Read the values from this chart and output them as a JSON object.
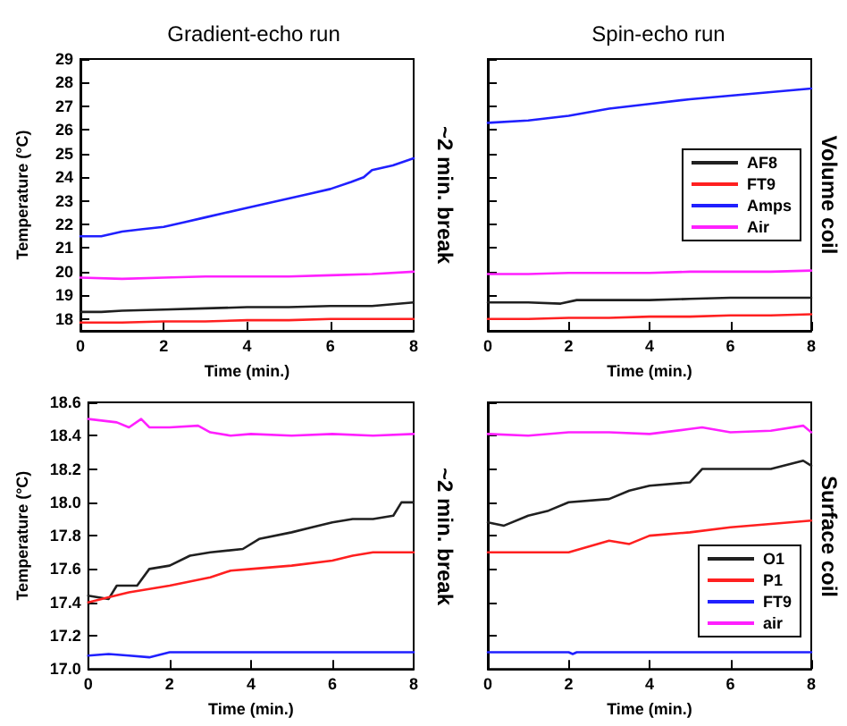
{
  "chart_data": [
    {
      "type": "line",
      "title": "Gradient-echo run",
      "xlabel": "Time (min.)",
      "ylabel": "Temperature (°C)",
      "xlim": [
        0,
        8
      ],
      "xticks": [
        0,
        2,
        4,
        6,
        8
      ],
      "ylim": [
        17.5,
        29
      ],
      "yticks": [
        18,
        19,
        20,
        21,
        22,
        23,
        24,
        25,
        26,
        27,
        28,
        29
      ],
      "grid": false,
      "marker": "none",
      "line_style": "solid",
      "legend": false,
      "series": [
        {
          "color": "#202020",
          "x": [
            0,
            0.5,
            1,
            2,
            3,
            4,
            5,
            6,
            7,
            8
          ],
          "values": [
            18.3,
            18.3,
            18.35,
            18.4,
            18.45,
            18.5,
            18.5,
            18.55,
            18.55,
            18.7
          ]
        },
        {
          "color": "#ff2020",
          "x": [
            0,
            1,
            2,
            3,
            4,
            5,
            6,
            7,
            8
          ],
          "values": [
            17.85,
            17.85,
            17.9,
            17.9,
            17.95,
            17.95,
            18.0,
            18.0,
            18.0
          ]
        },
        {
          "color": "#2020ff",
          "x": [
            0,
            0.5,
            1,
            1.5,
            2,
            2.5,
            3,
            3.5,
            4,
            4.5,
            5,
            5.5,
            6,
            6.5,
            6.8,
            7,
            7.5,
            8
          ],
          "values": [
            21.5,
            21.5,
            21.7,
            21.8,
            21.9,
            22.1,
            22.3,
            22.5,
            22.7,
            22.9,
            23.1,
            23.3,
            23.5,
            23.8,
            24.0,
            24.3,
            24.5,
            24.8
          ]
        },
        {
          "color": "#ff20ff",
          "x": [
            0,
            1,
            2,
            3,
            4,
            5,
            6,
            7,
            8
          ],
          "values": [
            19.75,
            19.7,
            19.75,
            19.8,
            19.8,
            19.8,
            19.85,
            19.9,
            20.0
          ]
        }
      ]
    },
    {
      "type": "line",
      "title": "Spin-echo run",
      "xlabel": "Time (min.)",
      "xlim": [
        0,
        8
      ],
      "xticks": [
        0,
        2,
        4,
        6,
        8
      ],
      "ylim": [
        17.5,
        29
      ],
      "yticks": [
        18,
        19,
        20,
        21,
        22,
        23,
        24,
        25,
        26,
        27,
        28,
        29
      ],
      "tick_labels": "x",
      "grid": false,
      "marker": "none",
      "line_style": "solid",
      "legend": "right",
      "annotations": [
        "~2 min. break",
        "Volume coil"
      ],
      "series": [
        {
          "name": "AF8",
          "color": "#202020",
          "x": [
            0,
            1,
            1.8,
            2.2,
            3,
            4,
            5,
            6,
            7,
            8
          ],
          "values": [
            18.7,
            18.7,
            18.65,
            18.8,
            18.8,
            18.8,
            18.85,
            18.9,
            18.9,
            18.9
          ]
        },
        {
          "name": "FT9",
          "color": "#ff2020",
          "x": [
            0,
            1,
            2,
            3,
            4,
            5,
            6,
            7,
            8
          ],
          "values": [
            18.0,
            18.0,
            18.05,
            18.05,
            18.1,
            18.1,
            18.15,
            18.15,
            18.2
          ]
        },
        {
          "name": "Amps",
          "color": "#2020ff",
          "x": [
            0,
            1,
            2,
            2.5,
            3,
            4,
            5,
            6,
            7,
            8
          ],
          "values": [
            26.3,
            26.4,
            26.6,
            26.75,
            26.9,
            27.1,
            27.3,
            27.45,
            27.6,
            27.75
          ]
        },
        {
          "name": "Air",
          "color": "#ff20ff",
          "x": [
            0,
            1,
            2,
            3,
            4,
            5,
            6,
            7,
            8
          ],
          "values": [
            19.9,
            19.9,
            19.95,
            19.95,
            19.95,
            20.0,
            20.0,
            20.0,
            20.05
          ]
        }
      ]
    },
    {
      "type": "line",
      "xlabel": "Time (min.)",
      "ylabel": "Temperature (°C)",
      "xlim": [
        0,
        8
      ],
      "xticks": [
        0,
        2,
        4,
        6,
        8
      ],
      "ylim": [
        17,
        18.6
      ],
      "yticks": [
        {
          "value": 17,
          "label": "17.0"
        },
        17.2,
        17.4,
        17.6,
        17.8,
        {
          "value": 18,
          "label": "18.0"
        },
        18.2,
        18.4,
        18.6
      ],
      "grid": false,
      "marker": "none",
      "line_style": "solid",
      "legend": false,
      "series": [
        {
          "color": "#202020",
          "x": [
            0,
            0.5,
            0.7,
            1.2,
            1.5,
            2,
            2.5,
            3,
            3.8,
            4.2,
            5,
            5.5,
            6,
            6.5,
            7,
            7.5,
            7.7,
            8
          ],
          "values": [
            17.44,
            17.42,
            17.5,
            17.5,
            17.6,
            17.62,
            17.68,
            17.7,
            17.72,
            17.78,
            17.82,
            17.85,
            17.88,
            17.9,
            17.9,
            17.92,
            18.0,
            18.0
          ]
        },
        {
          "color": "#ff2020",
          "x": [
            0,
            0.5,
            1,
            2,
            3,
            3.5,
            4,
            5,
            6,
            6.5,
            7,
            8
          ],
          "values": [
            17.4,
            17.43,
            17.46,
            17.5,
            17.55,
            17.59,
            17.6,
            17.62,
            17.65,
            17.68,
            17.7,
            17.7
          ]
        },
        {
          "color": "#2020ff",
          "x": [
            0,
            0.5,
            1,
            1.5,
            2,
            4,
            6,
            8
          ],
          "values": [
            17.08,
            17.09,
            17.08,
            17.07,
            17.1,
            17.1,
            17.1,
            17.1
          ]
        },
        {
          "color": "#ff20ff",
          "x": [
            0,
            0.7,
            1,
            1.3,
            1.5,
            2,
            2.7,
            3,
            3.5,
            4,
            5,
            6,
            7,
            8
          ],
          "values": [
            18.5,
            18.48,
            18.45,
            18.5,
            18.45,
            18.45,
            18.46,
            18.42,
            18.4,
            18.41,
            18.4,
            18.41,
            18.4,
            18.41
          ]
        }
      ]
    },
    {
      "type": "line",
      "xlabel": "Time (min.)",
      "xlim": [
        0,
        8
      ],
      "xticks": [
        0,
        2,
        4,
        6,
        8
      ],
      "ylim": [
        17,
        18.6
      ],
      "yticks": [
        17,
        17.2,
        17.4,
        17.6,
        17.8,
        18,
        18.2,
        18.4,
        18.6
      ],
      "tick_labels": "x",
      "grid": false,
      "marker": "none",
      "line_style": "solid",
      "legend": "bottom right",
      "annotations": [
        "~2 min. break",
        "Surface coil"
      ],
      "series": [
        {
          "name": "O1",
          "color": "#202020",
          "x": [
            0,
            0.4,
            1,
            1.5,
            2,
            3,
            3.5,
            4,
            5,
            5.3,
            6,
            7,
            7.8,
            8
          ],
          "values": [
            17.88,
            17.86,
            17.92,
            17.95,
            18.0,
            18.02,
            18.07,
            18.1,
            18.12,
            18.2,
            18.2,
            18.2,
            18.25,
            18.22
          ]
        },
        {
          "name": "P1",
          "color": "#ff2020",
          "x": [
            0,
            2,
            3,
            3.5,
            4,
            5,
            6,
            7,
            8
          ],
          "values": [
            17.7,
            17.7,
            17.77,
            17.75,
            17.8,
            17.82,
            17.85,
            17.87,
            17.89
          ]
        },
        {
          "name": "FT9",
          "color": "#2020ff",
          "x": [
            0,
            2,
            2.1,
            2.2,
            4,
            6,
            8
          ],
          "values": [
            17.1,
            17.1,
            17.09,
            17.1,
            17.1,
            17.1,
            17.1
          ]
        },
        {
          "name": "air",
          "color": "#ff20ff",
          "x": [
            0,
            1,
            2,
            3,
            4,
            5,
            5.3,
            6,
            7,
            7.8,
            8
          ],
          "values": [
            18.41,
            18.4,
            18.42,
            18.42,
            18.41,
            18.44,
            18.45,
            18.42,
            18.43,
            18.46,
            18.42
          ]
        }
      ]
    }
  ]
}
